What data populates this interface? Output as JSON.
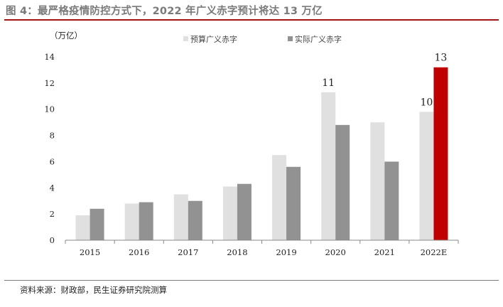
{
  "figure": {
    "title": "图 4：最严格疫情防控方式下，2022 年广义赤字预计将达 13 万亿",
    "source": "资料来源：财政部，民生证券研究院测算"
  },
  "chart_data": {
    "type": "bar",
    "title": "",
    "unit_label": "（万亿）",
    "categories": [
      "2015",
      "2016",
      "2017",
      "2018",
      "2019",
      "2020",
      "2021",
      "2022E"
    ],
    "series": [
      {
        "name": "预算广义赤字",
        "color": "#e0e0e0",
        "values": [
          1.9,
          2.8,
          3.5,
          4.1,
          6.5,
          11.3,
          9.0,
          9.8
        ]
      },
      {
        "name": "实际广义赤字",
        "color": "#929292",
        "values": [
          2.4,
          2.9,
          3.0,
          4.3,
          5.6,
          8.8,
          6.0,
          null
        ]
      }
    ],
    "highlight": {
      "category": "2022E",
      "value": 13.2,
      "color": "#c00000"
    },
    "annotations": [
      {
        "category": "2020",
        "text": "11"
      },
      {
        "category": "2022E",
        "text": "10"
      },
      {
        "category": "2022E",
        "text": "13"
      }
    ],
    "y_ticks": [
      "0",
      "2",
      "4",
      "6",
      "8",
      "10",
      "12",
      "14"
    ],
    "ylim": [
      0,
      14
    ],
    "grid": false,
    "legend_position": "top"
  }
}
